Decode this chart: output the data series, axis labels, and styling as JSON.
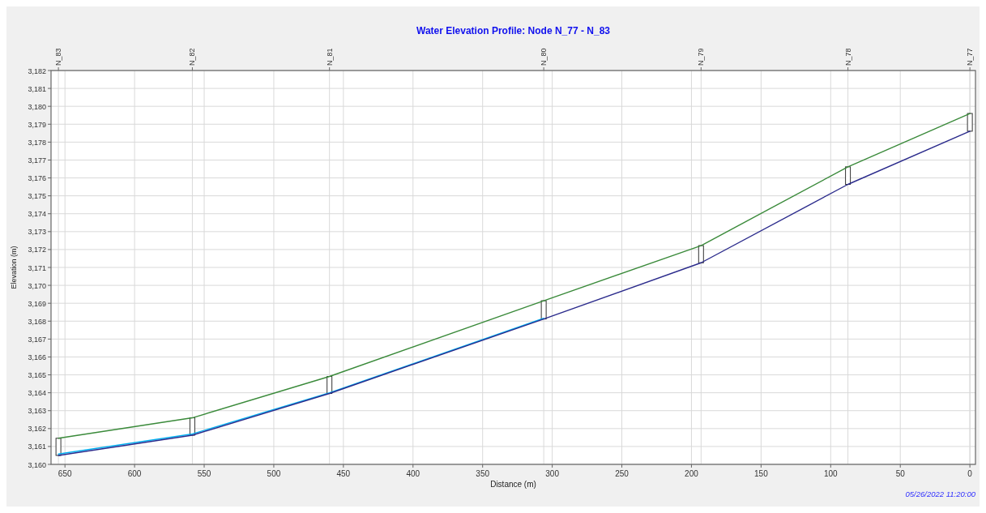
{
  "chart_data": {
    "type": "line",
    "title": "Water Elevation Profile: Node N_77 - N_83",
    "xlabel": "Distance (m)",
    "ylabel": "Elevation (m)",
    "x": [
      654.7,
      558.5,
      460,
      306.1,
      193.1,
      87.6,
      0
    ],
    "series": [
      {
        "type": "bar",
        "color": "#ffffff",
        "base": [
          3160.5,
          3161.63,
          3163.96,
          3168.12,
          3171.26,
          3175.64,
          3178.61
        ],
        "values": [
          0.96,
          0.97,
          0.95,
          1.02,
          0.96,
          0.98,
          0.99
        ]
      },
      {
        "color": "#3a8a3a",
        "values": [
          3161.46,
          3162.6,
          3164.91,
          3169.14,
          3172.22,
          3176.62,
          3179.6
        ]
      },
      {
        "color": "#00b0f0",
        "values": [
          3160.58,
          3161.7,
          3164.0,
          3168.16,
          null,
          null,
          null
        ]
      },
      {
        "color": "#2b2b8c",
        "values": [
          3160.5,
          3161.63,
          3163.96,
          3168.12,
          3171.26,
          3175.64,
          3178.61
        ]
      }
    ],
    "xlim": [
      660,
      -4
    ],
    "xticks": [
      650,
      600,
      550,
      500,
      450,
      400,
      350,
      300,
      250,
      200,
      150,
      100,
      50,
      0
    ],
    "ylim": [
      3160,
      3182
    ],
    "yticks": [
      {
        "value": 3160,
        "label": "3,160"
      },
      {
        "value": 3161,
        "label": "3,161"
      },
      {
        "value": 3162,
        "label": "3,162"
      },
      {
        "value": 3163,
        "label": "3,163"
      },
      {
        "value": 3164,
        "label": "3,164"
      },
      {
        "value": 3165,
        "label": "3,165"
      },
      {
        "value": 3166,
        "label": "3,166"
      },
      {
        "value": 3167,
        "label": "3,167"
      },
      {
        "value": 3168,
        "label": "3,168"
      },
      {
        "value": 3169,
        "label": "3,169"
      },
      {
        "value": 3170,
        "label": "3,170"
      },
      {
        "value": 3171,
        "label": "3,171"
      },
      {
        "value": 3172,
        "label": "3,172"
      },
      {
        "value": 3173,
        "label": "3,173"
      },
      {
        "value": 3174,
        "label": "3,174"
      },
      {
        "value": 3175,
        "label": "3,175"
      },
      {
        "value": 3176,
        "label": "3,176"
      },
      {
        "value": 3177,
        "label": "3,177"
      },
      {
        "value": 3178,
        "label": "3,178"
      },
      {
        "value": 3179,
        "label": "3,179"
      },
      {
        "value": 3180,
        "label": "3,180"
      },
      {
        "value": 3181,
        "label": "3,181"
      },
      {
        "value": 3182,
        "label": "3,182"
      }
    ],
    "grid": true,
    "ref_lines": [
      {
        "axis": "x",
        "value": 654.7,
        "label": "N_83"
      },
      {
        "axis": "x",
        "value": 558.5,
        "label": "N_82"
      },
      {
        "axis": "x",
        "value": 460,
        "label": "N_81"
      },
      {
        "axis": "x",
        "value": 306.1,
        "label": "N_80"
      },
      {
        "axis": "x",
        "value": 193.1,
        "label": "N_79"
      },
      {
        "axis": "x",
        "value": 87.6,
        "label": "N_78"
      },
      {
        "axis": "x",
        "value": 0,
        "label": "N_77"
      }
    ],
    "annotations": [
      "05/26/2022 11:20:00"
    ]
  }
}
